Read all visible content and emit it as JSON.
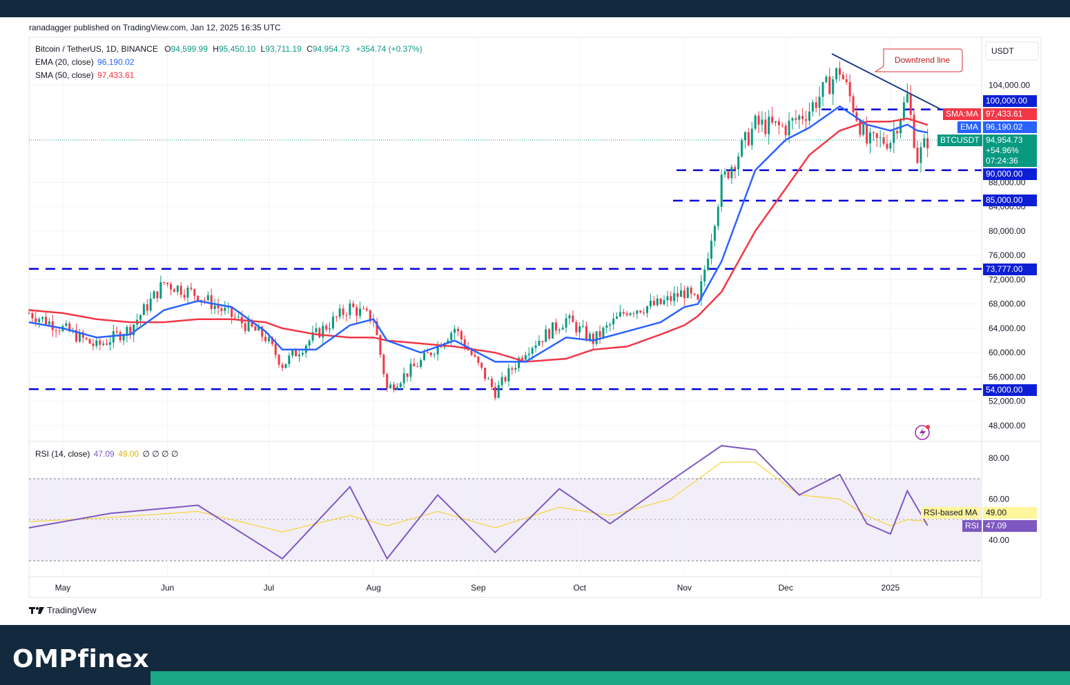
{
  "publisher": "ranadagger published on TradingView.com, Jan 12, 2025 16:35 UTC",
  "footer": {
    "logo_text": "TradingView",
    "brand": "OMPfinex"
  },
  "legend": {
    "symbol": "Bitcoin / TetherUS, 1D, BINANCE",
    "o_label": "O",
    "o": "94,599.99",
    "h_label": "H",
    "h": "95,450.10",
    "l_label": "L",
    "l": "93,711.19",
    "c_label": "C",
    "c": "94,954.73",
    "change": "+354.74 (+0.37%)",
    "ema_label": "EMA (20, close)",
    "ema": "96,190.02",
    "sma_label": "SMA (50, close)",
    "sma": "97,433.61",
    "rsi_label": "RSI (14, close)",
    "rsi": "47.09",
    "rsi_ma": "49.00",
    "rsi_extra": "∅ ∅ ∅ ∅"
  },
  "currency": "USDT",
  "annotation": "Downtrend line",
  "tags": {
    "level_100k": "100,000.00",
    "sma_tag": "SMA:MA",
    "sma_val": "97,433.61",
    "ema_tag": "EMA",
    "ema_val": "96,190.02",
    "btc_tag": "BTCUSDT",
    "btc_val": "94,954.73",
    "btc_pct": "+54.96%",
    "btc_time": "07:24:36",
    "level_90k": "90,000.00",
    "level_85k": "85,000.00",
    "level_73k": "73,777.00",
    "level_54k": "54,000.00",
    "rsi_ma_tag": "RSI-based MA",
    "rsi_ma_val": "49.00",
    "rsi_tag": "RSI",
    "rsi_val": "47.09"
  },
  "colors": {
    "ema": "#2962ff",
    "sma": "#f23645",
    "up": "#089981",
    "down": "#f23645",
    "level": "#0000d9",
    "rsi": "#7e57c2",
    "rsi_ma": "#f5d33b"
  },
  "chart_data": [
    {
      "type": "line",
      "title": "Bitcoin / TetherUS, 1D, BINANCE",
      "x_ticks": [
        "May",
        "Jun",
        "Jul",
        "Aug",
        "Sep",
        "Oct",
        "Nov",
        "Dec",
        "2025"
      ],
      "y_ticks": [
        "104,000.00",
        "88,000.00",
        "84,000.00",
        "80,000.00",
        "76,000.00",
        "72,000.00",
        "68,000.00",
        "64,000.00",
        "60,000.00",
        "56,000.00",
        "52,000.00",
        "48,000.00"
      ],
      "ylim": [
        45000,
        110000
      ],
      "horizontal_levels": [
        100000,
        90000,
        85000,
        73777,
        54000
      ],
      "x": [
        "2024-04-21",
        "2024-05-01",
        "2024-05-11",
        "2024-05-21",
        "2024-05-31",
        "2024-06-10",
        "2024-06-20",
        "2024-06-30",
        "2024-07-05",
        "2024-07-15",
        "2024-07-25",
        "2024-08-01",
        "2024-08-05",
        "2024-08-15",
        "2024-08-25",
        "2024-09-06",
        "2024-09-15",
        "2024-09-27",
        "2024-10-05",
        "2024-10-15",
        "2024-10-25",
        "2024-11-01",
        "2024-11-05",
        "2024-11-12",
        "2024-11-22",
        "2024-12-01",
        "2024-12-08",
        "2024-12-17",
        "2024-12-25",
        "2025-01-01",
        "2025-01-06",
        "2025-01-09",
        "2025-01-12"
      ],
      "series": [
        {
          "name": "Price",
          "values": [
            66500,
            64000,
            61000,
            64000,
            71500,
            69500,
            66000,
            62500,
            58000,
            63000,
            67500,
            65500,
            54000,
            58500,
            64000,
            53500,
            60500,
            65500,
            62000,
            67000,
            68000,
            70000,
            68000,
            88000,
            97500,
            97000,
            100000,
            106500,
            94500,
            95000,
            102000,
            92000,
            94950
          ]
        },
        {
          "name": "EMA (20, close)",
          "values": [
            65000,
            64000,
            62500,
            63000,
            67000,
            68500,
            67500,
            63500,
            60500,
            60500,
            64500,
            65500,
            62000,
            60000,
            62000,
            58500,
            58500,
            62500,
            62000,
            63500,
            65000,
            67500,
            68000,
            75000,
            90000,
            95000,
            97000,
            100500,
            97500,
            96500,
            97500,
            96500,
            96190
          ]
        },
        {
          "name": "SMA (50, close)",
          "values": [
            67000,
            66500,
            65500,
            65000,
            65000,
            65500,
            65500,
            65000,
            64000,
            63000,
            62500,
            62500,
            62000,
            61500,
            61000,
            60000,
            58500,
            59000,
            60500,
            61000,
            63000,
            64500,
            66000,
            70000,
            80000,
            87000,
            92500,
            96500,
            98000,
            98000,
            98500,
            98000,
            97433
          ]
        }
      ]
    },
    {
      "type": "line",
      "title": "RSI (14, close)",
      "y_ticks": [
        "80.00",
        "60.00",
        "40.00"
      ],
      "ylim": [
        20,
        90
      ],
      "x": [
        "2024-04-21",
        "2024-05-15",
        "2024-06-10",
        "2024-07-05",
        "2024-07-25",
        "2024-08-05",
        "2024-08-20",
        "2024-09-06",
        "2024-09-25",
        "2024-10-10",
        "2024-10-28",
        "2024-11-12",
        "2024-11-22",
        "2024-12-05",
        "2024-12-17",
        "2024-12-25",
        "2025-01-01",
        "2025-01-06",
        "2025-01-12"
      ],
      "series": [
        {
          "name": "RSI",
          "values": [
            46,
            53,
            57,
            31,
            66,
            31,
            62,
            34,
            65,
            48,
            69,
            86,
            84,
            62,
            72,
            48,
            43,
            64,
            47.09
          ]
        },
        {
          "name": "RSI-based MA",
          "values": [
            49,
            51,
            54,
            44,
            52,
            47,
            54,
            46,
            56,
            52,
            60,
            78,
            78,
            62,
            60,
            52,
            47,
            50,
            49.0
          ]
        }
      ]
    }
  ]
}
